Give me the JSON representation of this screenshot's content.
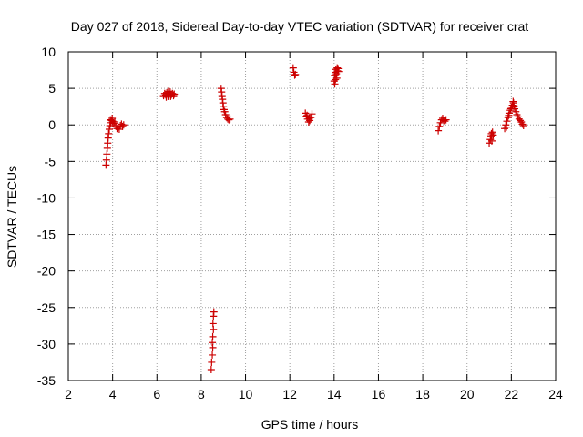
{
  "chart_data": {
    "type": "scatter",
    "title": "Day 027 of 2018, Sidereal Day-to-day VTEC variation (SDTVAR) for receiver crat",
    "xlabel": "GPS time / hours",
    "ylabel": "SDTVAR / TECUs",
    "xlim": [
      2,
      24
    ],
    "ylim": [
      -35,
      10
    ],
    "xticks": [
      2,
      4,
      6,
      8,
      10,
      12,
      14,
      16,
      18,
      20,
      22,
      24
    ],
    "yticks": [
      10,
      5,
      0,
      -5,
      -10,
      -15,
      -20,
      -25,
      -30,
      -35
    ],
    "grid": true,
    "marker": "plus",
    "series": [
      {
        "name": "SDTVAR",
        "color": "#cc0000",
        "points": [
          [
            3.7,
            -5.5
          ],
          [
            3.72,
            -4.8
          ],
          [
            3.74,
            -4.0
          ],
          [
            3.76,
            -3.2
          ],
          [
            3.78,
            -2.5
          ],
          [
            3.8,
            -1.8
          ],
          [
            3.82,
            -1.2
          ],
          [
            3.85,
            -0.6
          ],
          [
            3.88,
            -0.1
          ],
          [
            3.92,
            0.3
          ],
          [
            3.95,
            0.6
          ],
          [
            3.98,
            0.9
          ],
          [
            4.0,
            0.5
          ],
          [
            4.05,
            0.2
          ],
          [
            4.1,
            0.4
          ],
          [
            4.15,
            -0.2
          ],
          [
            4.2,
            -0.5
          ],
          [
            4.25,
            -0.3
          ],
          [
            4.3,
            -0.6
          ],
          [
            4.35,
            -0.1
          ],
          [
            4.4,
            0.1
          ],
          [
            4.45,
            -0.2
          ],
          [
            4.5,
            0.0
          ],
          [
            3.9,
            0.7
          ],
          [
            6.3,
            4.0
          ],
          [
            6.35,
            4.3
          ],
          [
            6.4,
            4.1
          ],
          [
            6.45,
            4.4
          ],
          [
            6.5,
            3.9
          ],
          [
            6.55,
            4.2
          ],
          [
            6.6,
            4.5
          ],
          [
            6.65,
            4.1
          ],
          [
            6.7,
            4.3
          ],
          [
            6.75,
            4.0
          ],
          [
            6.78,
            4.2
          ],
          [
            6.42,
            3.8
          ],
          [
            6.52,
            4.6
          ],
          [
            6.62,
            3.9
          ],
          [
            8.45,
            -33.5
          ],
          [
            8.47,
            -32.5
          ],
          [
            8.5,
            -31.5
          ],
          [
            8.52,
            -30.5
          ],
          [
            8.5,
            -29.8
          ],
          [
            8.52,
            -29.0
          ],
          [
            8.55,
            -28.0
          ],
          [
            8.53,
            -27.2
          ],
          [
            8.55,
            -26.2
          ],
          [
            8.57,
            -25.6
          ],
          [
            8.9,
            5.0
          ],
          [
            8.92,
            4.5
          ],
          [
            8.94,
            4.0
          ],
          [
            8.96,
            3.5
          ],
          [
            8.98,
            3.0
          ],
          [
            9.0,
            2.5
          ],
          [
            9.03,
            2.1
          ],
          [
            9.06,
            1.8
          ],
          [
            9.1,
            1.4
          ],
          [
            9.15,
            1.0
          ],
          [
            9.2,
            0.8
          ],
          [
            9.25,
            0.7
          ],
          [
            9.3,
            0.8
          ],
          [
            12.15,
            7.8
          ],
          [
            12.18,
            7.2
          ],
          [
            12.22,
            6.8
          ],
          [
            12.25,
            6.9
          ],
          [
            12.7,
            1.6
          ],
          [
            12.75,
            1.2
          ],
          [
            12.8,
            0.8
          ],
          [
            12.85,
            0.4
          ],
          [
            12.9,
            0.6
          ],
          [
            12.95,
            1.0
          ],
          [
            13.0,
            1.5
          ],
          [
            12.78,
            1.3
          ],
          [
            12.88,
            0.9
          ],
          [
            14.0,
            6.0
          ],
          [
            14.02,
            6.8
          ],
          [
            14.05,
            7.2
          ],
          [
            14.08,
            7.6
          ],
          [
            14.1,
            7.0
          ],
          [
            14.12,
            6.4
          ],
          [
            14.15,
            7.4
          ],
          [
            14.18,
            7.7
          ],
          [
            14.2,
            7.3
          ],
          [
            14.03,
            5.6
          ],
          [
            14.06,
            6.2
          ],
          [
            14.14,
            7.8
          ],
          [
            18.7,
            -0.8
          ],
          [
            18.75,
            -0.2
          ],
          [
            18.8,
            0.3
          ],
          [
            18.85,
            0.7
          ],
          [
            18.9,
            0.9
          ],
          [
            18.95,
            0.6
          ],
          [
            19.0,
            0.5
          ],
          [
            19.05,
            0.7
          ],
          [
            21.0,
            -2.5
          ],
          [
            21.05,
            -2.0
          ],
          [
            21.08,
            -1.5
          ],
          [
            21.1,
            -1.2
          ],
          [
            21.12,
            -2.2
          ],
          [
            21.15,
            -1.0
          ],
          [
            21.18,
            -1.4
          ],
          [
            21.7,
            -0.5
          ],
          [
            21.75,
            0.0
          ],
          [
            21.8,
            0.5
          ],
          [
            21.85,
            1.0
          ],
          [
            21.9,
            1.6
          ],
          [
            21.95,
            2.0
          ],
          [
            22.0,
            2.4
          ],
          [
            22.05,
            2.7
          ],
          [
            22.1,
            3.0
          ],
          [
            22.12,
            2.6
          ],
          [
            22.15,
            2.2
          ],
          [
            22.2,
            1.8
          ],
          [
            22.25,
            1.4
          ],
          [
            22.3,
            1.1
          ],
          [
            22.35,
            0.8
          ],
          [
            22.4,
            0.6
          ],
          [
            22.45,
            0.4
          ],
          [
            22.5,
            0.1
          ],
          [
            22.55,
            -0.1
          ],
          [
            21.78,
            -0.3
          ],
          [
            21.88,
            1.3
          ],
          [
            21.98,
            2.2
          ],
          [
            22.08,
            3.2
          ]
        ]
      }
    ]
  }
}
